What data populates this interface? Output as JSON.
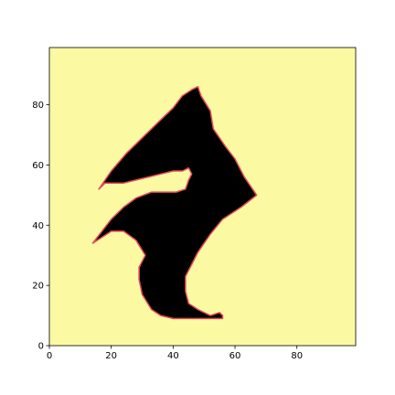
{
  "chart_data": {
    "type": "heatmap",
    "title": "",
    "xlabel": "",
    "ylabel": "",
    "xlim": [
      0,
      99
    ],
    "ylim": [
      0,
      99
    ],
    "x_ticks": [
      0,
      20,
      40,
      60,
      80
    ],
    "y_ticks": [
      0,
      20,
      40,
      60,
      80
    ],
    "x_tick_labels": [
      "0",
      "20",
      "40",
      "60",
      "80"
    ],
    "y_tick_labels": [
      "0",
      "20",
      "40",
      "60",
      "80"
    ],
    "grid": false,
    "colors": {
      "background": "#fbfaa3",
      "shape_fill": "#000000",
      "shape_edge": "#e34a5a"
    },
    "shape_outline": [
      [
        16,
        52
      ],
      [
        20,
        58
      ],
      [
        25,
        64
      ],
      [
        30,
        69
      ],
      [
        35,
        74
      ],
      [
        40,
        79
      ],
      [
        43,
        83
      ],
      [
        46,
        85
      ],
      [
        48,
        86
      ],
      [
        49,
        83
      ],
      [
        52,
        78
      ],
      [
        53,
        72
      ],
      [
        57,
        66
      ],
      [
        60,
        62
      ],
      [
        63,
        56
      ],
      [
        67,
        50
      ],
      [
        62,
        46
      ],
      [
        56,
        42
      ],
      [
        52,
        37
      ],
      [
        48,
        31
      ],
      [
        46,
        27
      ],
      [
        44,
        23
      ],
      [
        44,
        18
      ],
      [
        45,
        14
      ],
      [
        48,
        12
      ],
      [
        52,
        10
      ],
      [
        55,
        11
      ],
      [
        56,
        10
      ],
      [
        56,
        9
      ],
      [
        40,
        9
      ],
      [
        36,
        10
      ],
      [
        33,
        12
      ],
      [
        30,
        17
      ],
      [
        29,
        22
      ],
      [
        29,
        26
      ],
      [
        31,
        30
      ],
      [
        28,
        35
      ],
      [
        24,
        38
      ],
      [
        20,
        38
      ],
      [
        17,
        36
      ],
      [
        14,
        34
      ],
      [
        17,
        38
      ],
      [
        20,
        42
      ],
      [
        24,
        46
      ],
      [
        28,
        49
      ],
      [
        33,
        51
      ],
      [
        41,
        51
      ],
      [
        44,
        52
      ],
      [
        45,
        55
      ],
      [
        46,
        57
      ],
      [
        45,
        59
      ],
      [
        43,
        58
      ],
      [
        40,
        58
      ],
      [
        36,
        57
      ],
      [
        32,
        56
      ],
      [
        28,
        55
      ],
      [
        24,
        54
      ],
      [
        18,
        54
      ]
    ]
  }
}
